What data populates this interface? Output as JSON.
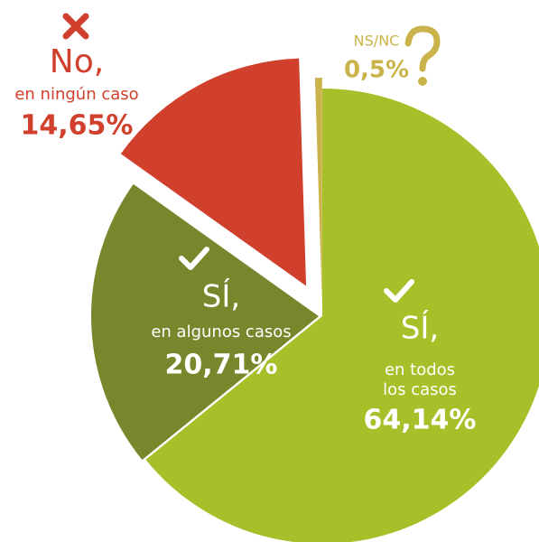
{
  "chart_data": {
    "type": "pie",
    "slices": [
      {
        "label": "SÍ,",
        "sublabel": [
          "en todos",
          "los casos"
        ],
        "value": 64.14,
        "value_label": "64,14%",
        "color": "#a6c02a"
      },
      {
        "label": "SÍ,",
        "sublabel": [
          "en algunos casos"
        ],
        "value": 20.71,
        "value_label": "20,71%",
        "color": "#77872b"
      },
      {
        "label": "No,",
        "sublabel": [
          "en ningún caso"
        ],
        "value": 14.65,
        "value_label": "14,65%",
        "color": "#d0402d"
      },
      {
        "label": "NS/NC",
        "sublabel": [],
        "value": 0.5,
        "value_label": "0,5%",
        "color": "#c9b34a"
      }
    ]
  }
}
